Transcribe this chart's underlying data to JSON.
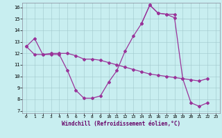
{
  "xlabel": "Windchill (Refroidissement éolien,°C)",
  "bg_color": "#c8eef0",
  "line_color": "#993399",
  "xlim": [
    -0.5,
    23.5
  ],
  "ylim": [
    6.8,
    16.4
  ],
  "yticks": [
    7,
    8,
    9,
    10,
    11,
    12,
    13,
    14,
    15,
    16
  ],
  "xticks": [
    0,
    1,
    2,
    3,
    4,
    5,
    6,
    7,
    8,
    9,
    10,
    11,
    12,
    13,
    14,
    15,
    16,
    17,
    18,
    19,
    20,
    21,
    22,
    23
  ],
  "line1_x": [
    0,
    1,
    2,
    3,
    4,
    5,
    6,
    7,
    8,
    9,
    10,
    11,
    12,
    13,
    14,
    15,
    16,
    17,
    18
  ],
  "line1_y": [
    12.6,
    13.3,
    11.9,
    11.9,
    11.9,
    10.5,
    8.8,
    8.1,
    8.1,
    8.3,
    9.5,
    10.5,
    12.2,
    13.5,
    14.6,
    16.2,
    15.5,
    15.4,
    15.4
  ],
  "line2_x": [
    0,
    1,
    2,
    3,
    4,
    5,
    6,
    7,
    8,
    9,
    10,
    11,
    12,
    13,
    14,
    15,
    16,
    17,
    18,
    19,
    20,
    21,
    22
  ],
  "line2_y": [
    12.6,
    11.9,
    11.9,
    12.0,
    12.0,
    12.0,
    11.8,
    11.5,
    11.5,
    11.4,
    11.2,
    11.0,
    10.8,
    10.6,
    10.4,
    10.2,
    10.1,
    10.0,
    9.9,
    9.8,
    9.7,
    9.6,
    9.8
  ],
  "line3_x": [
    14,
    15,
    16,
    17,
    18,
    19,
    20,
    21,
    22
  ],
  "line3_y": [
    14.6,
    16.2,
    15.5,
    15.4,
    15.1,
    9.8,
    7.7,
    7.4,
    7.7
  ]
}
